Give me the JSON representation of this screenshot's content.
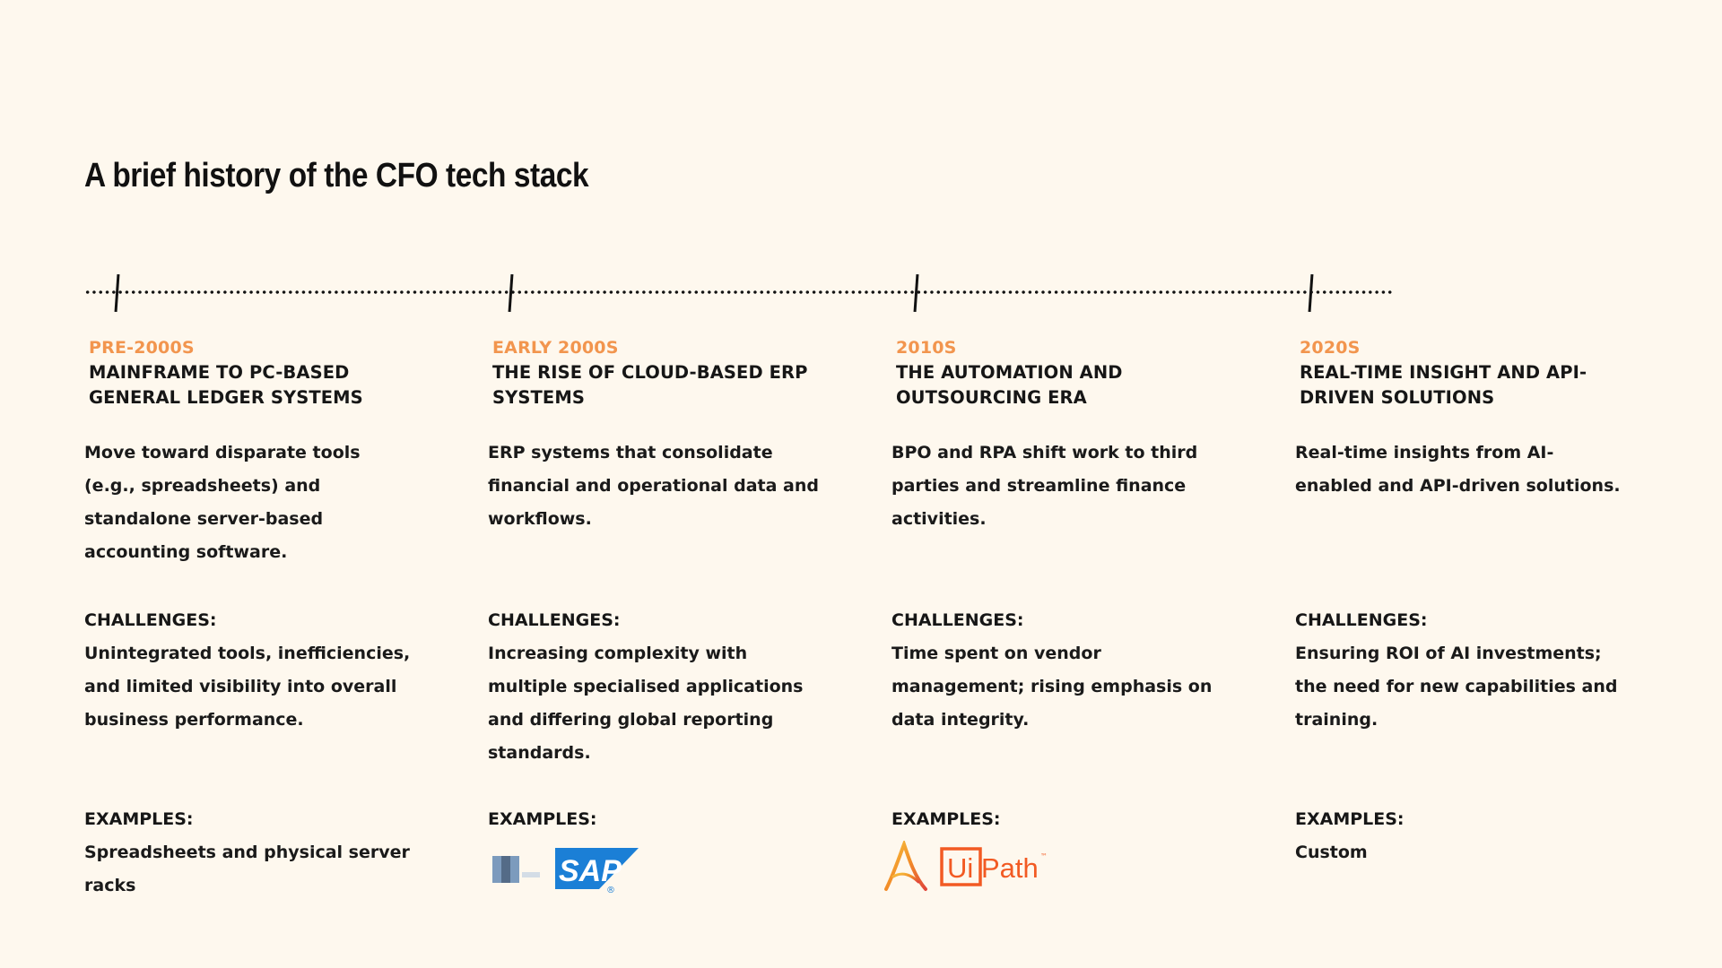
{
  "title": "A brief history of the CFO tech stack",
  "colors": {
    "background": "#fef8ee",
    "accent": "#f2954e",
    "text": "#161616",
    "sap_blue": "#1b7fd6",
    "uipath_orange": "#f25a23",
    "netsuite_navy": "#1b3a5f",
    "automation_anywhere_orange": "#f28c28"
  },
  "eras": [
    {
      "label": "PRE-2000S",
      "heading": "MAINFRAME TO PC-BASED GENERAL LEDGER SYSTEMS",
      "description": "Move toward disparate tools (e.g., spreadsheets) and standalone server-based accounting software.",
      "challenges_label": "CHALLENGES:",
      "challenges": "Unintegrated tools, inefficiencies, and limited visibility into overall business performance.",
      "examples_label": "EXAMPLES:",
      "examples": "Spreadsheets and physical server racks"
    },
    {
      "label": "EARLY 2000S",
      "heading": "THE RISE OF CLOUD-BASED ERP SYSTEMS",
      "description": "ERP systems that consolidate financial and operational data and workflows.",
      "challenges_label": "CHALLENGES:",
      "challenges": "Increasing complexity with multiple specialised applications and differing global reporting standards.",
      "examples_label": "EXAMPLES:",
      "logos": {
        "sap_wordmark": "SAP",
        "sap_mark": "®",
        "netsuite_icon": "netsuite-logo-icon"
      }
    },
    {
      "label": "2010S",
      "heading": "THE AUTOMATION AND OUTSOURCING ERA",
      "description": "BPO and RPA shift work to third parties and streamline finance activities.",
      "challenges_label": "CHALLENGES:",
      "challenges": "Time spent on vendor management; rising emphasis on data integrity.",
      "examples_label": "EXAMPLES:",
      "logos": {
        "uipath_box": "Ui",
        "uipath_word": "Path",
        "uipath_mark": "™",
        "automation_icon": "automation-anywhere-logo-icon"
      }
    },
    {
      "label": "2020S",
      "heading": "REAL-TIME INSIGHT AND API-DRIVEN SOLUTIONS",
      "description": "Real-time insights from AI-enabled and API-driven solutions.",
      "challenges_label": "CHALLENGES:",
      "challenges": "Ensuring ROI of AI investments; the need for new capabilities and training.",
      "examples_label": "EXAMPLES:",
      "examples": "Custom"
    }
  ]
}
